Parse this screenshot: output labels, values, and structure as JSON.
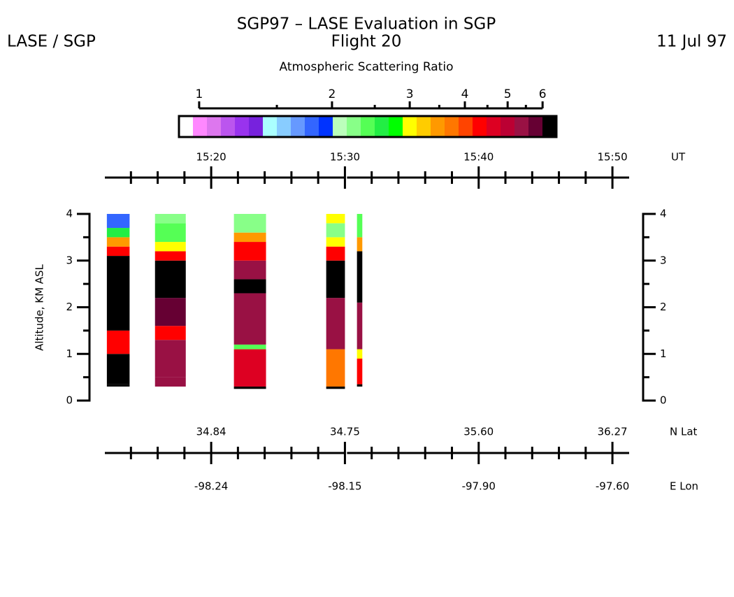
{
  "chart_data": {
    "type": "curtain",
    "title": "SGP97 – LASE Evaluation in SGP",
    "subtitle": "Flight 20",
    "header_left": "LASE / SGP",
    "header_right": "11 Jul 97",
    "colorbar": {
      "label": "Atmospheric Scattering Ratio",
      "log": true,
      "clim": [
        0.9,
        6.45
      ],
      "ticks": [
        1,
        2,
        3,
        4,
        5,
        6
      ],
      "minorticks": [
        1.5,
        2.5,
        3.5,
        4.5,
        5.5
      ],
      "colors": [
        "#ffffff",
        "#ff88ff",
        "#dd77ee",
        "#bb55ee",
        "#9933ee",
        "#7722dd",
        "#aaffff",
        "#88ccff",
        "#6699ff",
        "#3366ff",
        "#0033ff",
        "#bbffbb",
        "#88ff88",
        "#55ff55",
        "#22ee44",
        "#00ff00",
        "#ffff00",
        "#ffcc00",
        "#ff9900",
        "#ff7700",
        "#ff4400",
        "#ff0000",
        "#dd0022",
        "#bb0033",
        "#991144",
        "#660033",
        "#000000"
      ]
    },
    "x_unit": "UT",
    "xlim": [
      912.05,
      951.25
    ],
    "xticks": [
      {
        "value": 920,
        "label": "15:20"
      },
      {
        "value": 930,
        "label": "15:30"
      },
      {
        "value": 940,
        "label": "15:40"
      },
      {
        "value": 950,
        "label": "15:50"
      }
    ],
    "xminorticks": [
      914,
      916,
      918,
      922,
      924,
      926,
      928,
      932,
      934,
      936,
      938,
      942,
      944,
      946,
      948
    ],
    "axis_break": 930,
    "lat_title": "N Lat",
    "lat_labels": [
      "34.84",
      "34.75",
      "35.60",
      "36.27"
    ],
    "lon_title": "E Lon",
    "lon_labels": [
      "-98.24",
      "-98.15",
      "-97.90",
      "-97.60"
    ],
    "y_label": "Altitude, KM ASL",
    "ylim": [
      0,
      4
    ],
    "yticks": [
      0,
      1,
      2,
      3,
      4
    ],
    "yminorticks": [
      0.5,
      1.5,
      2.5,
      3.5
    ],
    "segments": [
      {
        "start": 912.2,
        "end": 913.9,
        "layers": [
          {
            "bottom": 0.3,
            "top": 0.35,
            "ratio": 6.2
          },
          {
            "bottom": 0.35,
            "top": 1.0,
            "ratio": 6.0
          },
          {
            "bottom": 1.0,
            "top": 1.5,
            "ratio": 4.3
          },
          {
            "bottom": 1.5,
            "top": 3.1,
            "ratio": 6.2
          },
          {
            "bottom": 3.1,
            "top": 3.3,
            "ratio": 4.3
          },
          {
            "bottom": 3.3,
            "top": 3.5,
            "ratio": 3.5
          },
          {
            "bottom": 3.5,
            "top": 3.7,
            "ratio": 2.5
          },
          {
            "bottom": 3.7,
            "top": 4.0,
            "ratio": 1.8
          }
        ]
      },
      {
        "start": 915.8,
        "end": 918.1,
        "layers": [
          {
            "bottom": 0.3,
            "top": 0.5,
            "ratio": 5.5
          },
          {
            "bottom": 0.5,
            "top": 1.3,
            "ratio": 5.3
          },
          {
            "bottom": 1.3,
            "top": 1.6,
            "ratio": 4.3
          },
          {
            "bottom": 1.6,
            "top": 2.2,
            "ratio": 5.7
          },
          {
            "bottom": 2.2,
            "top": 3.0,
            "ratio": 6.2
          },
          {
            "bottom": 3.0,
            "top": 3.2,
            "ratio": 4.2
          },
          {
            "bottom": 3.2,
            "top": 3.4,
            "ratio": 3.0
          },
          {
            "bottom": 3.4,
            "top": 3.8,
            "ratio": 2.4
          },
          {
            "bottom": 3.8,
            "top": 4.0,
            "ratio": 2.2
          }
        ]
      },
      {
        "start": 921.7,
        "end": 924.1,
        "layers": [
          {
            "bottom": 0.25,
            "top": 0.3,
            "ratio": 6.2
          },
          {
            "bottom": 0.3,
            "top": 1.1,
            "ratio": 4.6
          },
          {
            "bottom": 1.1,
            "top": 1.2,
            "ratio": 2.4
          },
          {
            "bottom": 1.2,
            "top": 2.3,
            "ratio": 5.4
          },
          {
            "bottom": 2.3,
            "top": 2.6,
            "ratio": 6.2
          },
          {
            "bottom": 2.6,
            "top": 3.0,
            "ratio": 5.2
          },
          {
            "bottom": 3.0,
            "top": 3.4,
            "ratio": 4.3
          },
          {
            "bottom": 3.4,
            "top": 3.6,
            "ratio": 3.4
          },
          {
            "bottom": 3.6,
            "top": 4.0,
            "ratio": 2.3
          }
        ]
      },
      {
        "start": 928.6,
        "end": 930.0,
        "layers": [
          {
            "bottom": 0.25,
            "top": 0.3,
            "ratio": 6.2
          },
          {
            "bottom": 0.3,
            "top": 1.1,
            "ratio": 3.8
          },
          {
            "bottom": 1.1,
            "top": 2.2,
            "ratio": 5.4
          },
          {
            "bottom": 2.2,
            "top": 3.0,
            "ratio": 6.2
          },
          {
            "bottom": 3.0,
            "top": 3.3,
            "ratio": 4.3
          },
          {
            "bottom": 3.3,
            "top": 3.5,
            "ratio": 3.0
          },
          {
            "bottom": 3.5,
            "top": 3.8,
            "ratio": 2.3
          },
          {
            "bottom": 3.8,
            "top": 4.0,
            "ratio": 2.9
          }
        ]
      },
      {
        "start": 930.9,
        "end": 931.3,
        "layers": [
          {
            "bottom": 0.3,
            "top": 0.35,
            "ratio": 6.2
          },
          {
            "bottom": 0.35,
            "top": 0.9,
            "ratio": 4.3
          },
          {
            "bottom": 0.9,
            "top": 1.1,
            "ratio": 3.0
          },
          {
            "bottom": 1.1,
            "top": 2.1,
            "ratio": 5.3
          },
          {
            "bottom": 2.1,
            "top": 3.2,
            "ratio": 6.2
          },
          {
            "bottom": 3.2,
            "top": 3.5,
            "ratio": 3.5
          },
          {
            "bottom": 3.5,
            "top": 4.0,
            "ratio": 2.4
          }
        ]
      }
    ]
  }
}
